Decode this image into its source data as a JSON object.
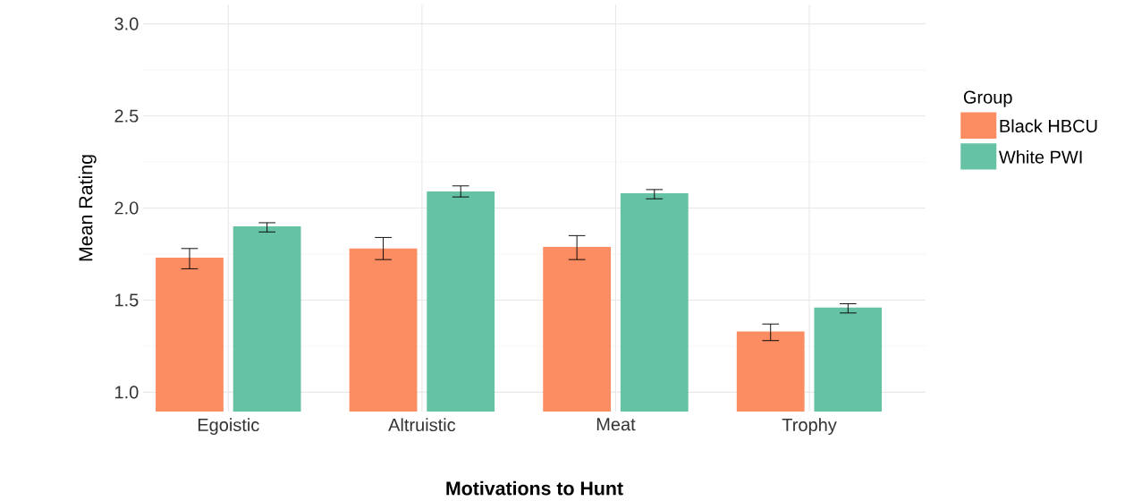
{
  "chart_data": {
    "type": "bar",
    "xlabel": "**Motivations to Hunt**",
    "ylabel": "Mean Rating",
    "legend_title": "Group",
    "categories": [
      "Egoistic",
      "Altruistic",
      "Meat",
      "Trophy"
    ],
    "series": [
      {
        "name": "Black HBCU",
        "color": "#fc8d62",
        "values": [
          1.73,
          1.78,
          1.79,
          1.33
        ],
        "errors": [
          [
            1.67,
            1.78
          ],
          [
            1.72,
            1.84
          ],
          [
            1.72,
            1.85
          ],
          [
            1.28,
            1.37
          ]
        ]
      },
      {
        "name": "White PWI",
        "color": "#66c2a5",
        "values": [
          1.9,
          2.09,
          2.08,
          1.46
        ],
        "errors": [
          [
            1.87,
            1.92
          ],
          [
            2.06,
            2.12
          ],
          [
            2.05,
            2.1
          ],
          [
            1.43,
            1.48
          ]
        ]
      }
    ],
    "ylim": [
      0.895,
      3.105
    ],
    "yticks": [
      {
        "value": 1,
        "label": "1.0"
      },
      1.5,
      {
        "value": 2,
        "label": "2.0"
      },
      2.5,
      {
        "value": 3,
        "label": "3.0"
      }
    ],
    "grid": true,
    "legend": "right"
  }
}
